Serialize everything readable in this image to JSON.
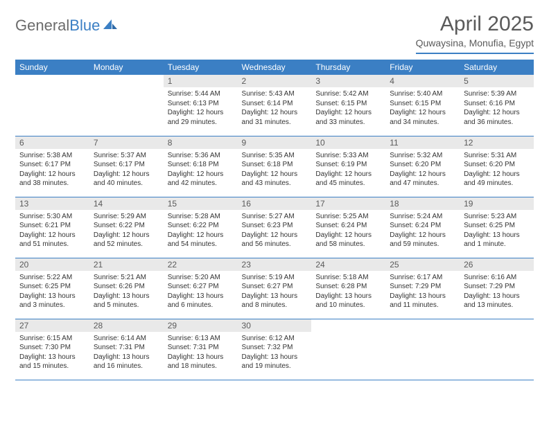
{
  "brand": {
    "part1": "General",
    "part2": "Blue"
  },
  "title": "April 2025",
  "location": "Quwaysina, Monufia, Egypt",
  "colors": {
    "accent": "#3b7fc4",
    "daynum_bg": "#e9e9e9",
    "text_muted": "#5a5a5a",
    "text": "#333333",
    "background": "#ffffff"
  },
  "calendar": {
    "headers": [
      "Sunday",
      "Monday",
      "Tuesday",
      "Wednesday",
      "Thursday",
      "Friday",
      "Saturday"
    ],
    "weeks": [
      [
        null,
        null,
        {
          "n": "1",
          "sunrise": "5:44 AM",
          "sunset": "6:13 PM",
          "daylight": "12 hours and 29 minutes."
        },
        {
          "n": "2",
          "sunrise": "5:43 AM",
          "sunset": "6:14 PM",
          "daylight": "12 hours and 31 minutes."
        },
        {
          "n": "3",
          "sunrise": "5:42 AM",
          "sunset": "6:15 PM",
          "daylight": "12 hours and 33 minutes."
        },
        {
          "n": "4",
          "sunrise": "5:40 AM",
          "sunset": "6:15 PM",
          "daylight": "12 hours and 34 minutes."
        },
        {
          "n": "5",
          "sunrise": "5:39 AM",
          "sunset": "6:16 PM",
          "daylight": "12 hours and 36 minutes."
        }
      ],
      [
        {
          "n": "6",
          "sunrise": "5:38 AM",
          "sunset": "6:17 PM",
          "daylight": "12 hours and 38 minutes."
        },
        {
          "n": "7",
          "sunrise": "5:37 AM",
          "sunset": "6:17 PM",
          "daylight": "12 hours and 40 minutes."
        },
        {
          "n": "8",
          "sunrise": "5:36 AM",
          "sunset": "6:18 PM",
          "daylight": "12 hours and 42 minutes."
        },
        {
          "n": "9",
          "sunrise": "5:35 AM",
          "sunset": "6:18 PM",
          "daylight": "12 hours and 43 minutes."
        },
        {
          "n": "10",
          "sunrise": "5:33 AM",
          "sunset": "6:19 PM",
          "daylight": "12 hours and 45 minutes."
        },
        {
          "n": "11",
          "sunrise": "5:32 AM",
          "sunset": "6:20 PM",
          "daylight": "12 hours and 47 minutes."
        },
        {
          "n": "12",
          "sunrise": "5:31 AM",
          "sunset": "6:20 PM",
          "daylight": "12 hours and 49 minutes."
        }
      ],
      [
        {
          "n": "13",
          "sunrise": "5:30 AM",
          "sunset": "6:21 PM",
          "daylight": "12 hours and 51 minutes."
        },
        {
          "n": "14",
          "sunrise": "5:29 AM",
          "sunset": "6:22 PM",
          "daylight": "12 hours and 52 minutes."
        },
        {
          "n": "15",
          "sunrise": "5:28 AM",
          "sunset": "6:22 PM",
          "daylight": "12 hours and 54 minutes."
        },
        {
          "n": "16",
          "sunrise": "5:27 AM",
          "sunset": "6:23 PM",
          "daylight": "12 hours and 56 minutes."
        },
        {
          "n": "17",
          "sunrise": "5:25 AM",
          "sunset": "6:24 PM",
          "daylight": "12 hours and 58 minutes."
        },
        {
          "n": "18",
          "sunrise": "5:24 AM",
          "sunset": "6:24 PM",
          "daylight": "12 hours and 59 minutes."
        },
        {
          "n": "19",
          "sunrise": "5:23 AM",
          "sunset": "6:25 PM",
          "daylight": "13 hours and 1 minute."
        }
      ],
      [
        {
          "n": "20",
          "sunrise": "5:22 AM",
          "sunset": "6:25 PM",
          "daylight": "13 hours and 3 minutes."
        },
        {
          "n": "21",
          "sunrise": "5:21 AM",
          "sunset": "6:26 PM",
          "daylight": "13 hours and 5 minutes."
        },
        {
          "n": "22",
          "sunrise": "5:20 AM",
          "sunset": "6:27 PM",
          "daylight": "13 hours and 6 minutes."
        },
        {
          "n": "23",
          "sunrise": "5:19 AM",
          "sunset": "6:27 PM",
          "daylight": "13 hours and 8 minutes."
        },
        {
          "n": "24",
          "sunrise": "5:18 AM",
          "sunset": "6:28 PM",
          "daylight": "13 hours and 10 minutes."
        },
        {
          "n": "25",
          "sunrise": "6:17 AM",
          "sunset": "7:29 PM",
          "daylight": "13 hours and 11 minutes."
        },
        {
          "n": "26",
          "sunrise": "6:16 AM",
          "sunset": "7:29 PM",
          "daylight": "13 hours and 13 minutes."
        }
      ],
      [
        {
          "n": "27",
          "sunrise": "6:15 AM",
          "sunset": "7:30 PM",
          "daylight": "13 hours and 15 minutes."
        },
        {
          "n": "28",
          "sunrise": "6:14 AM",
          "sunset": "7:31 PM",
          "daylight": "13 hours and 16 minutes."
        },
        {
          "n": "29",
          "sunrise": "6:13 AM",
          "sunset": "7:31 PM",
          "daylight": "13 hours and 18 minutes."
        },
        {
          "n": "30",
          "sunrise": "6:12 AM",
          "sunset": "7:32 PM",
          "daylight": "13 hours and 19 minutes."
        },
        null,
        null,
        null
      ]
    ],
    "labels": {
      "sunrise": "Sunrise:",
      "sunset": "Sunset:",
      "daylight": "Daylight:"
    }
  }
}
